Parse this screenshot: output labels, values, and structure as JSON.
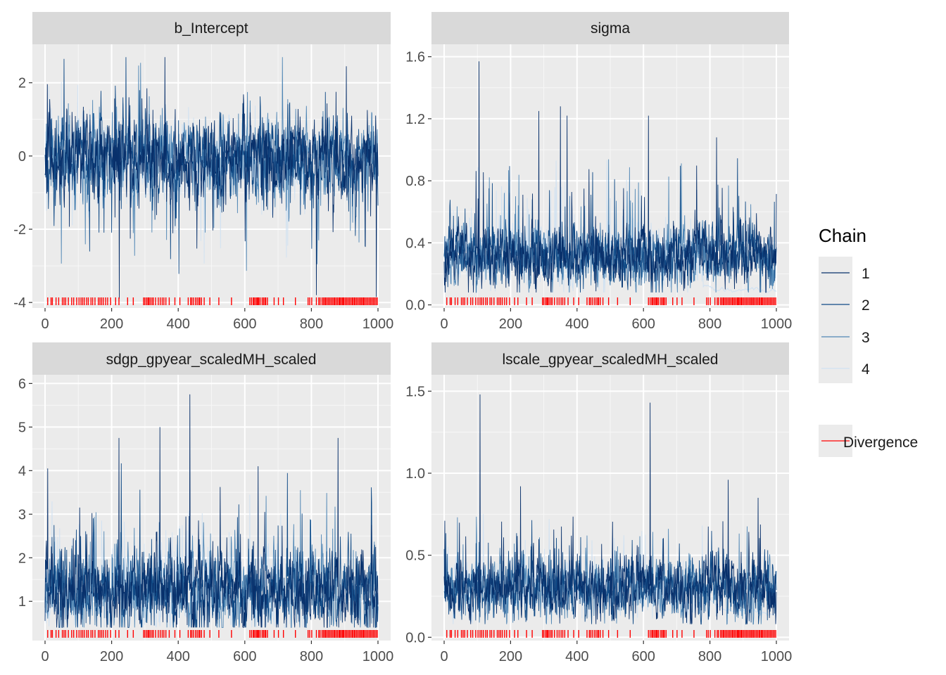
{
  "chart_data": {
    "type": "line",
    "title": "",
    "xlabel": "",
    "ylabel": "",
    "x_range": [
      0,
      1000
    ],
    "x_ticks": [
      0,
      200,
      400,
      600,
      800,
      1000
    ],
    "x_tick_labels": [
      "0",
      "200",
      "400",
      "600",
      "800",
      "1000"
    ],
    "panels": [
      {
        "title": "b_Intercept",
        "ylim": [
          -4.15,
          3.05
        ],
        "y_ticks": [
          -4,
          -2,
          0,
          2
        ],
        "y_tick_labels": [
          "-4",
          "-2",
          "0",
          "2"
        ],
        "center": -0.1,
        "spread": 0.55,
        "floor": -3.9,
        "ceil": 2.7,
        "spike_prob": 0.03,
        "spike_size": 2.2,
        "spike_up": 0.3,
        "late_mean": -0.2,
        "peaks": [
          [
            360,
            2.7
          ],
          [
            905,
            2.45
          ],
          [
            223,
            -3.9
          ],
          [
            815,
            -3.8
          ],
          [
            995,
            -3.85
          ]
        ]
      },
      {
        "title": "sigma",
        "ylim": [
          -0.02,
          1.68
        ],
        "y_ticks": [
          0.0,
          0.4,
          0.8,
          1.2,
          1.6
        ],
        "y_tick_labels": [
          "0.0",
          "0.4",
          "0.8",
          "1.2",
          "1.6"
        ],
        "center": 0.32,
        "spread": 0.1,
        "floor": 0.08,
        "ceil": 1.57,
        "spike_prob": 0.025,
        "spike_size": 0.5,
        "spike_up": 1.0,
        "late_mean": 0.1,
        "peaks": [
          [
            105,
            1.57
          ],
          [
            285,
            1.25
          ],
          [
            350,
            1.28
          ],
          [
            370,
            1.22
          ],
          [
            615,
            1.22
          ],
          [
            820,
            1.08
          ]
        ]
      },
      {
        "title": "sdgp_gpyear_scaledMH_scaled",
        "ylim": [
          0.1,
          6.2
        ],
        "y_ticks": [
          1,
          2,
          3,
          4,
          5,
          6
        ],
        "y_tick_labels": [
          "1",
          "2",
          "3",
          "4",
          "5",
          "6"
        ],
        "center": 1.25,
        "spread": 0.45,
        "floor": 0.4,
        "ceil": 5.75,
        "spike_prob": 0.03,
        "spike_size": 1.8,
        "spike_up": 1.0,
        "late_mean": 1.25,
        "peaks": [
          [
            435,
            5.75
          ],
          [
            345,
            5.0
          ],
          [
            222,
            4.75
          ],
          [
            880,
            4.75
          ],
          [
            8,
            4.05
          ],
          [
            640,
            4.1
          ]
        ]
      },
      {
        "title": "lscale_gpyear_scaledMH_scaled",
        "ylim": [
          -0.02,
          1.6
        ],
        "y_ticks": [
          0.0,
          0.5,
          1.0,
          1.5
        ],
        "y_tick_labels": [
          "0.0",
          "0.5",
          "1.0",
          "1.5"
        ],
        "center": 0.3,
        "spread": 0.09,
        "floor": 0.08,
        "ceil": 1.48,
        "spike_prob": 0.025,
        "spike_size": 0.35,
        "spike_up": 1.0,
        "late_mean": 0.15,
        "peaks": [
          [
            108,
            1.48
          ],
          [
            620,
            1.43
          ],
          [
            230,
            0.92
          ],
          [
            855,
            0.96
          ],
          [
            945,
            0.85
          ]
        ]
      }
    ],
    "series": [
      {
        "name": "1",
        "color": "#08306b"
      },
      {
        "name": "2",
        "color": "#104a86"
      },
      {
        "name": "3",
        "color": "#4f86b5"
      },
      {
        "name": "4",
        "color": "#cfe1f2"
      }
    ],
    "divergence": {
      "label": "Divergence",
      "color": "#ff0000",
      "iterations": [
        8,
        18,
        22,
        33,
        41,
        52,
        57,
        62,
        70,
        80,
        86,
        95,
        102,
        108,
        113,
        118,
        125,
        130,
        138,
        143,
        150,
        160,
        165,
        170,
        175,
        182,
        188,
        197,
        212,
        222,
        248,
        265,
        296,
        300,
        305,
        309,
        312,
        316,
        321,
        325,
        332,
        340,
        346,
        352,
        357,
        363,
        373,
        390,
        405,
        430,
        437,
        441,
        446,
        452,
        457,
        462,
        465,
        470,
        478,
        495,
        522,
        560,
        615,
        620,
        625,
        628,
        632,
        636,
        639,
        642,
        646,
        652,
        656,
        660,
        663,
        668,
        688,
        701,
        716,
        752,
        790,
        795,
        801,
        815,
        822,
        826,
        832,
        836,
        840,
        843,
        847,
        851,
        855,
        859,
        863,
        867,
        870,
        874,
        878,
        882,
        885,
        888,
        892,
        895,
        898,
        902,
        906,
        910,
        914,
        918,
        922,
        925,
        929,
        932,
        936,
        940,
        944,
        948,
        951,
        955,
        958,
        962,
        966,
        970,
        974,
        978,
        982,
        986,
        990,
        994,
        998
      ]
    }
  },
  "legend": {
    "chain_title": "Chain",
    "chain_items": [
      "1",
      "2",
      "3",
      "4"
    ],
    "divergence_label": "Divergence"
  }
}
